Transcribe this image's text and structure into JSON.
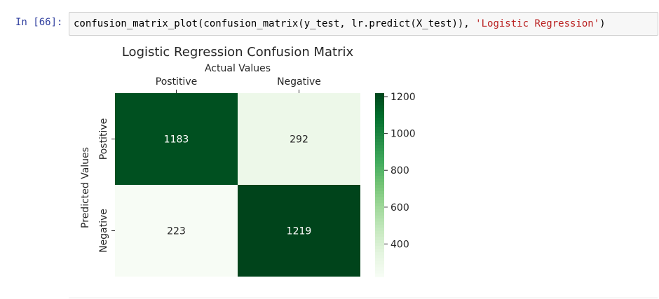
{
  "cell": {
    "prompt": "In [66]:",
    "code_prefix": "confusion_matrix_plot(confusion_matrix(y_test, lr.predict(X_test)), ",
    "code_string": "'Logistic Regression'",
    "code_suffix": ")"
  },
  "chart_data": {
    "type": "heatmap",
    "title": "Logistic Regression Confusion Matrix",
    "xlabel": "Actual Values",
    "ylabel": "Predicted Values",
    "x_categories": [
      "Postitive",
      "Negative"
    ],
    "y_categories": [
      "Postitive",
      "Negative"
    ],
    "values": [
      [
        1183,
        292
      ],
      [
        223,
        1219
      ]
    ],
    "colormap": "Greens",
    "vmin": 223,
    "vmax": 1219,
    "colorbar_ticks": [
      400,
      600,
      800,
      1000,
      1200
    ],
    "colors": {
      "high": "#00441b",
      "low": "#f7fcf5",
      "text_on_dark": "#ffffff",
      "text_on_light": "#262626"
    }
  }
}
